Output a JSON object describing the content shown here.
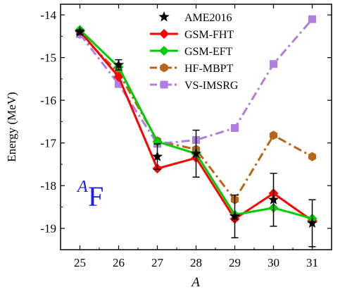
{
  "chart_data": {
    "type": "line",
    "xlabel": "A",
    "ylabel": "Energy (MeV)",
    "annotation": {
      "sup": "A",
      "base": "F",
      "color": "#1a1aff"
    },
    "x": [
      25,
      26,
      27,
      28,
      29,
      30,
      31
    ],
    "xlim": [
      24.5,
      31.5
    ],
    "ylim": [
      -19.5,
      -13.75
    ],
    "xticks": [
      25,
      26,
      27,
      28,
      29,
      30,
      31
    ],
    "yticks": [
      -14,
      -15,
      -16,
      -17,
      -18,
      -19
    ],
    "legend_position": "top-right",
    "series": [
      {
        "name": "AME2016",
        "marker": "star",
        "color": "#000000",
        "line": "none",
        "values": [
          -14.4,
          -15.17,
          -17.32,
          -17.25,
          -18.72,
          -18.33,
          -18.88
        ],
        "errors": [
          0.05,
          0.12,
          0.3,
          0.55,
          0.5,
          0.62,
          0.55
        ]
      },
      {
        "name": "GSM-FHT",
        "marker": "diamond",
        "color": "#ff0000",
        "line": "solid",
        "values": [
          -14.38,
          -15.45,
          -17.6,
          -17.35,
          -18.78,
          -18.18,
          -18.82
        ]
      },
      {
        "name": "GSM-EFT",
        "marker": "diamond",
        "color": "#00cc00",
        "line": "solid",
        "values": [
          -14.35,
          -15.22,
          -16.97,
          -17.25,
          -18.68,
          -18.52,
          -18.77
        ]
      },
      {
        "name": "HF-MBPT",
        "marker": "hexagon",
        "color": "#b8651a",
        "line": "dashdot",
        "values": [
          -14.45,
          -15.35,
          -16.95,
          -17.15,
          -18.33,
          -16.82,
          -17.32
        ]
      },
      {
        "name": "VS-IMSRG",
        "marker": "square",
        "color": "#b07ee0",
        "line": "dashdot",
        "values": [
          -14.45,
          -15.62,
          -17.02,
          -16.93,
          -16.65,
          -15.15,
          -14.1
        ]
      }
    ]
  }
}
